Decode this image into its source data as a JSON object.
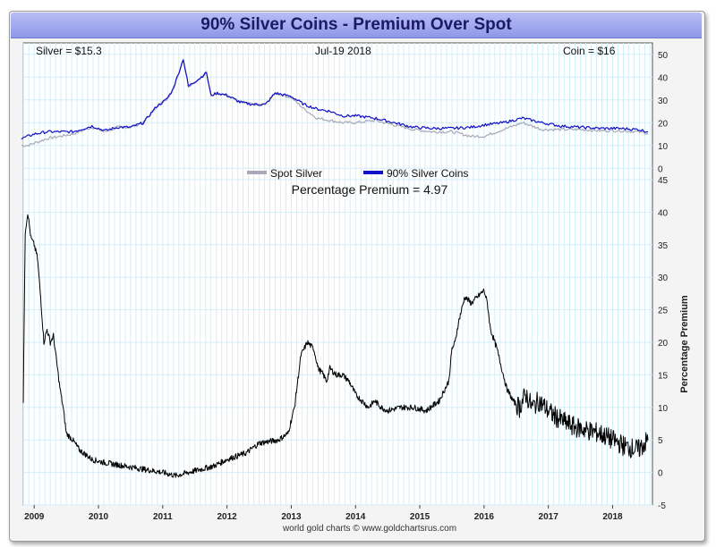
{
  "header": {
    "title": "90% Silver Coins - Premium Over Spot"
  },
  "info": {
    "silver": "Silver = $15.3",
    "date": "Jul-19  2018",
    "coin": "Coin = $16"
  },
  "credit": "world gold charts © www.goldchartsrus.com",
  "colors": {
    "spot": "#a8a8b8",
    "coins": "#1010c8",
    "premium": "#000000",
    "grid": "#d4eef8"
  },
  "chart_data": [
    {
      "type": "line",
      "title": "Price",
      "legend": [
        {
          "name": "Spot Silver",
          "color": "#a8a8b8"
        },
        {
          "name": "90% Silver Coins",
          "color": "#1010c8"
        }
      ],
      "ylim": [
        -5,
        55
      ],
      "yticks": [
        0,
        10,
        20,
        30,
        40,
        50
      ],
      "series": [
        {
          "name": "Spot Silver",
          "x": [
            2008.8,
            2008.9,
            2009.0,
            2009.2,
            2009.4,
            2009.6,
            2009.9,
            2010.1,
            2010.3,
            2010.5,
            2010.7,
            2010.9,
            2011.05,
            2011.15,
            2011.25,
            2011.32,
            2011.4,
            2011.5,
            2011.6,
            2011.68,
            2011.75,
            2011.85,
            2012.0,
            2012.2,
            2012.4,
            2012.6,
            2012.75,
            2013.0,
            2013.2,
            2013.4,
            2013.6,
            2013.8,
            2014.0,
            2014.3,
            2014.6,
            2014.9,
            2015.2,
            2015.5,
            2015.8,
            2016.0,
            2016.3,
            2016.6,
            2016.9,
            2017.2,
            2017.5,
            2017.8,
            2018.1,
            2018.4,
            2018.55
          ],
          "values": [
            10,
            10,
            11,
            13,
            14,
            15,
            18,
            16,
            18,
            18,
            20,
            27,
            30,
            34,
            42,
            48,
            36,
            38,
            40,
            42,
            32,
            33,
            32,
            29,
            28,
            28,
            33,
            31,
            26,
            22,
            21,
            20,
            20,
            21,
            19,
            17,
            16,
            16,
            14,
            14,
            17,
            20,
            17,
            17,
            17,
            16.5,
            16.5,
            16,
            15.3
          ]
        },
        {
          "name": "90% Silver Coins",
          "x": [
            2008.8,
            2008.9,
            2009.0,
            2009.2,
            2009.4,
            2009.6,
            2009.9,
            2010.1,
            2010.3,
            2010.5,
            2010.7,
            2010.9,
            2011.05,
            2011.15,
            2011.25,
            2011.32,
            2011.4,
            2011.5,
            2011.6,
            2011.68,
            2011.75,
            2011.85,
            2012.0,
            2012.2,
            2012.4,
            2012.6,
            2012.75,
            2013.0,
            2013.2,
            2013.4,
            2013.6,
            2013.8,
            2014.0,
            2014.3,
            2014.6,
            2014.9,
            2015.2,
            2015.5,
            2015.8,
            2016.0,
            2016.3,
            2016.6,
            2016.9,
            2017.2,
            2017.5,
            2017.8,
            2018.1,
            2018.4,
            2018.55
          ],
          "values": [
            13,
            14,
            15,
            16,
            16,
            16,
            18.5,
            16.5,
            18,
            18,
            20,
            27,
            30,
            34,
            42,
            48,
            36,
            38,
            40,
            42,
            32,
            33,
            32,
            29,
            28,
            28,
            33,
            31.5,
            28,
            26,
            25,
            23,
            23,
            22,
            20,
            18,
            17.5,
            17.5,
            18,
            19,
            20,
            22,
            20,
            18.5,
            18,
            17.5,
            17.5,
            17,
            16
          ]
        }
      ]
    },
    {
      "type": "line",
      "title": "Percentage Premium = 4.97",
      "ylabel": "Percentage Premium",
      "ylim": [
        -5,
        45
      ],
      "yticks": [
        -5,
        0,
        5,
        10,
        15,
        20,
        25,
        30,
        35,
        40,
        45
      ],
      "xlim": [
        2008.83,
        2018.62
      ],
      "xticks": [
        "2009",
        "2010",
        "2011",
        "2012",
        "2013",
        "2014",
        "2015",
        "2016",
        "2017",
        "2018"
      ],
      "series": [
        {
          "name": "Premium",
          "x": [
            2008.83,
            2008.86,
            2008.9,
            2008.95,
            2009.0,
            2009.05,
            2009.1,
            2009.15,
            2009.2,
            2009.25,
            2009.3,
            2009.35,
            2009.4,
            2009.45,
            2009.5,
            2009.6,
            2009.7,
            2009.9,
            2010.1,
            2010.4,
            2010.7,
            2011.0,
            2011.2,
            2011.4,
            2011.6,
            2011.8,
            2012.0,
            2012.3,
            2012.5,
            2012.8,
            2012.95,
            2013.05,
            2013.15,
            2013.25,
            2013.35,
            2013.42,
            2013.5,
            2013.55,
            2013.6,
            2013.7,
            2013.8,
            2013.9,
            2014.0,
            2014.1,
            2014.2,
            2014.3,
            2014.4,
            2014.5,
            2014.7,
            2014.9,
            2015.1,
            2015.3,
            2015.45,
            2015.5,
            2015.55,
            2015.6,
            2015.7,
            2015.8,
            2015.9,
            2016.0,
            2016.05,
            2016.1,
            2016.2,
            2016.3,
            2016.35,
            2016.45,
            2016.55,
            2016.65,
            2016.75,
            2016.85,
            2016.95,
            2017.05,
            2017.2,
            2017.4,
            2017.6,
            2017.8,
            2018.0,
            2018.2,
            2018.4,
            2018.55
          ],
          "values": [
            11,
            37,
            40,
            36,
            35,
            33,
            27,
            20,
            22,
            20,
            21,
            17,
            13,
            10,
            6,
            5,
            3.5,
            2,
            1.5,
            1,
            0.5,
            0,
            -0.5,
            0,
            0.5,
            1,
            2,
            3,
            4.5,
            5,
            6,
            10,
            18,
            20,
            19,
            16,
            15,
            14,
            16,
            15,
            15,
            14,
            12,
            11,
            10,
            11,
            10,
            9.5,
            10,
            10,
            9.5,
            11,
            14,
            19,
            20,
            23,
            27,
            26,
            27,
            28,
            26,
            22,
            19,
            15,
            13,
            11,
            10,
            12,
            10,
            11,
            10,
            9,
            8,
            7,
            6.5,
            6,
            5,
            4,
            3.5,
            4.97
          ]
        }
      ]
    }
  ]
}
